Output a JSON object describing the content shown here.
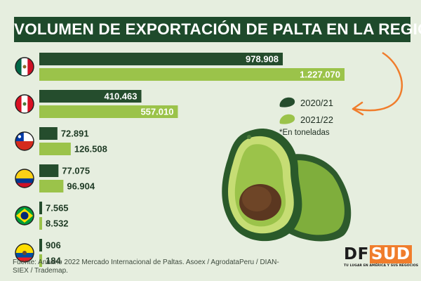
{
  "title": "VOLUMEN DE EXPORTACIÓN DE PALTA EN LA REGIÓN",
  "legend": {
    "items": [
      {
        "label": "2020/21",
        "color": "#254d2d"
      },
      {
        "label": "2021/22",
        "color": "#9bc34a"
      }
    ],
    "note": "*En toneladas"
  },
  "source": "Fuente: Anuario 2022 Mercado Internacional de Paltas. Asoex / AgrodataPeru / DIAN-SIEX / Trademap.",
  "logo": {
    "df": "DF",
    "sud": "SUD",
    "tagline": "TU LUGAR EN AMÉRICA Y SUS NEGOCIOS"
  },
  "colors": {
    "background": "#e6eedf",
    "title_bg": "#1e4a2b",
    "series_2020": "#254d2d",
    "series_2021": "#9bc34a",
    "arrow": "#f07d2c"
  },
  "chart_data": {
    "type": "bar",
    "orientation": "horizontal",
    "unit": "toneladas",
    "categories": [
      "mexico-flag",
      "peru-flag",
      "chile-flag",
      "colombia-flag",
      "brazil-flag",
      "ecuador-flag"
    ],
    "series": [
      {
        "name": "2020/21",
        "values": [
          978908,
          410463,
          72891,
          77075,
          7565,
          906
        ],
        "labels": [
          "978.908",
          "410.463",
          "72.891",
          "77.075",
          "7.565",
          "906"
        ]
      },
      {
        "name": "2021/22",
        "values": [
          1227070,
          557010,
          126508,
          96904,
          8532,
          184
        ],
        "labels": [
          "1.227.070",
          "557.010",
          "126.508",
          "96.904",
          "8.532",
          "184"
        ]
      }
    ]
  }
}
